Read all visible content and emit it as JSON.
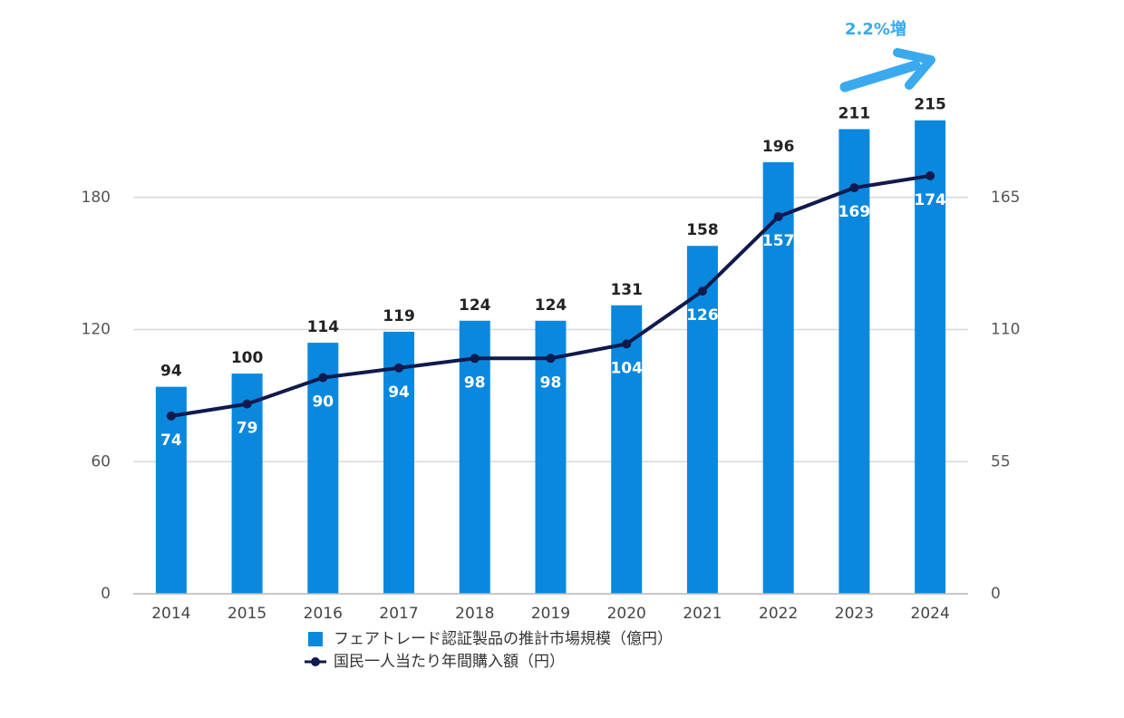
{
  "chart_data": {
    "type": "bar",
    "annotation": "2.2%増",
    "categories": [
      "2014",
      "2015",
      "2016",
      "2017",
      "2018",
      "2019",
      "2020",
      "2021",
      "2022",
      "2023",
      "2024"
    ],
    "series": [
      {
        "name": "フェアトレード認証製品の推計市場規模（億円）",
        "type": "bar",
        "color": "#0a88de",
        "values": [
          94,
          100,
          114,
          119,
          124,
          124,
          131,
          158,
          196,
          211,
          215
        ]
      },
      {
        "name": "国民一人当たり年間購入額（円）",
        "type": "line",
        "color": "#101a4e",
        "axis": "y2",
        "values": [
          74,
          79,
          90,
          94,
          98,
          98,
          104,
          126,
          157,
          169,
          174
        ]
      }
    ],
    "ylim": [
      0,
      240
    ],
    "yticks": [
      0,
      60,
      120,
      180
    ],
    "y2lim": [
      0,
      220
    ],
    "y2ticks": [
      0,
      55,
      110,
      165
    ],
    "grid": true
  }
}
